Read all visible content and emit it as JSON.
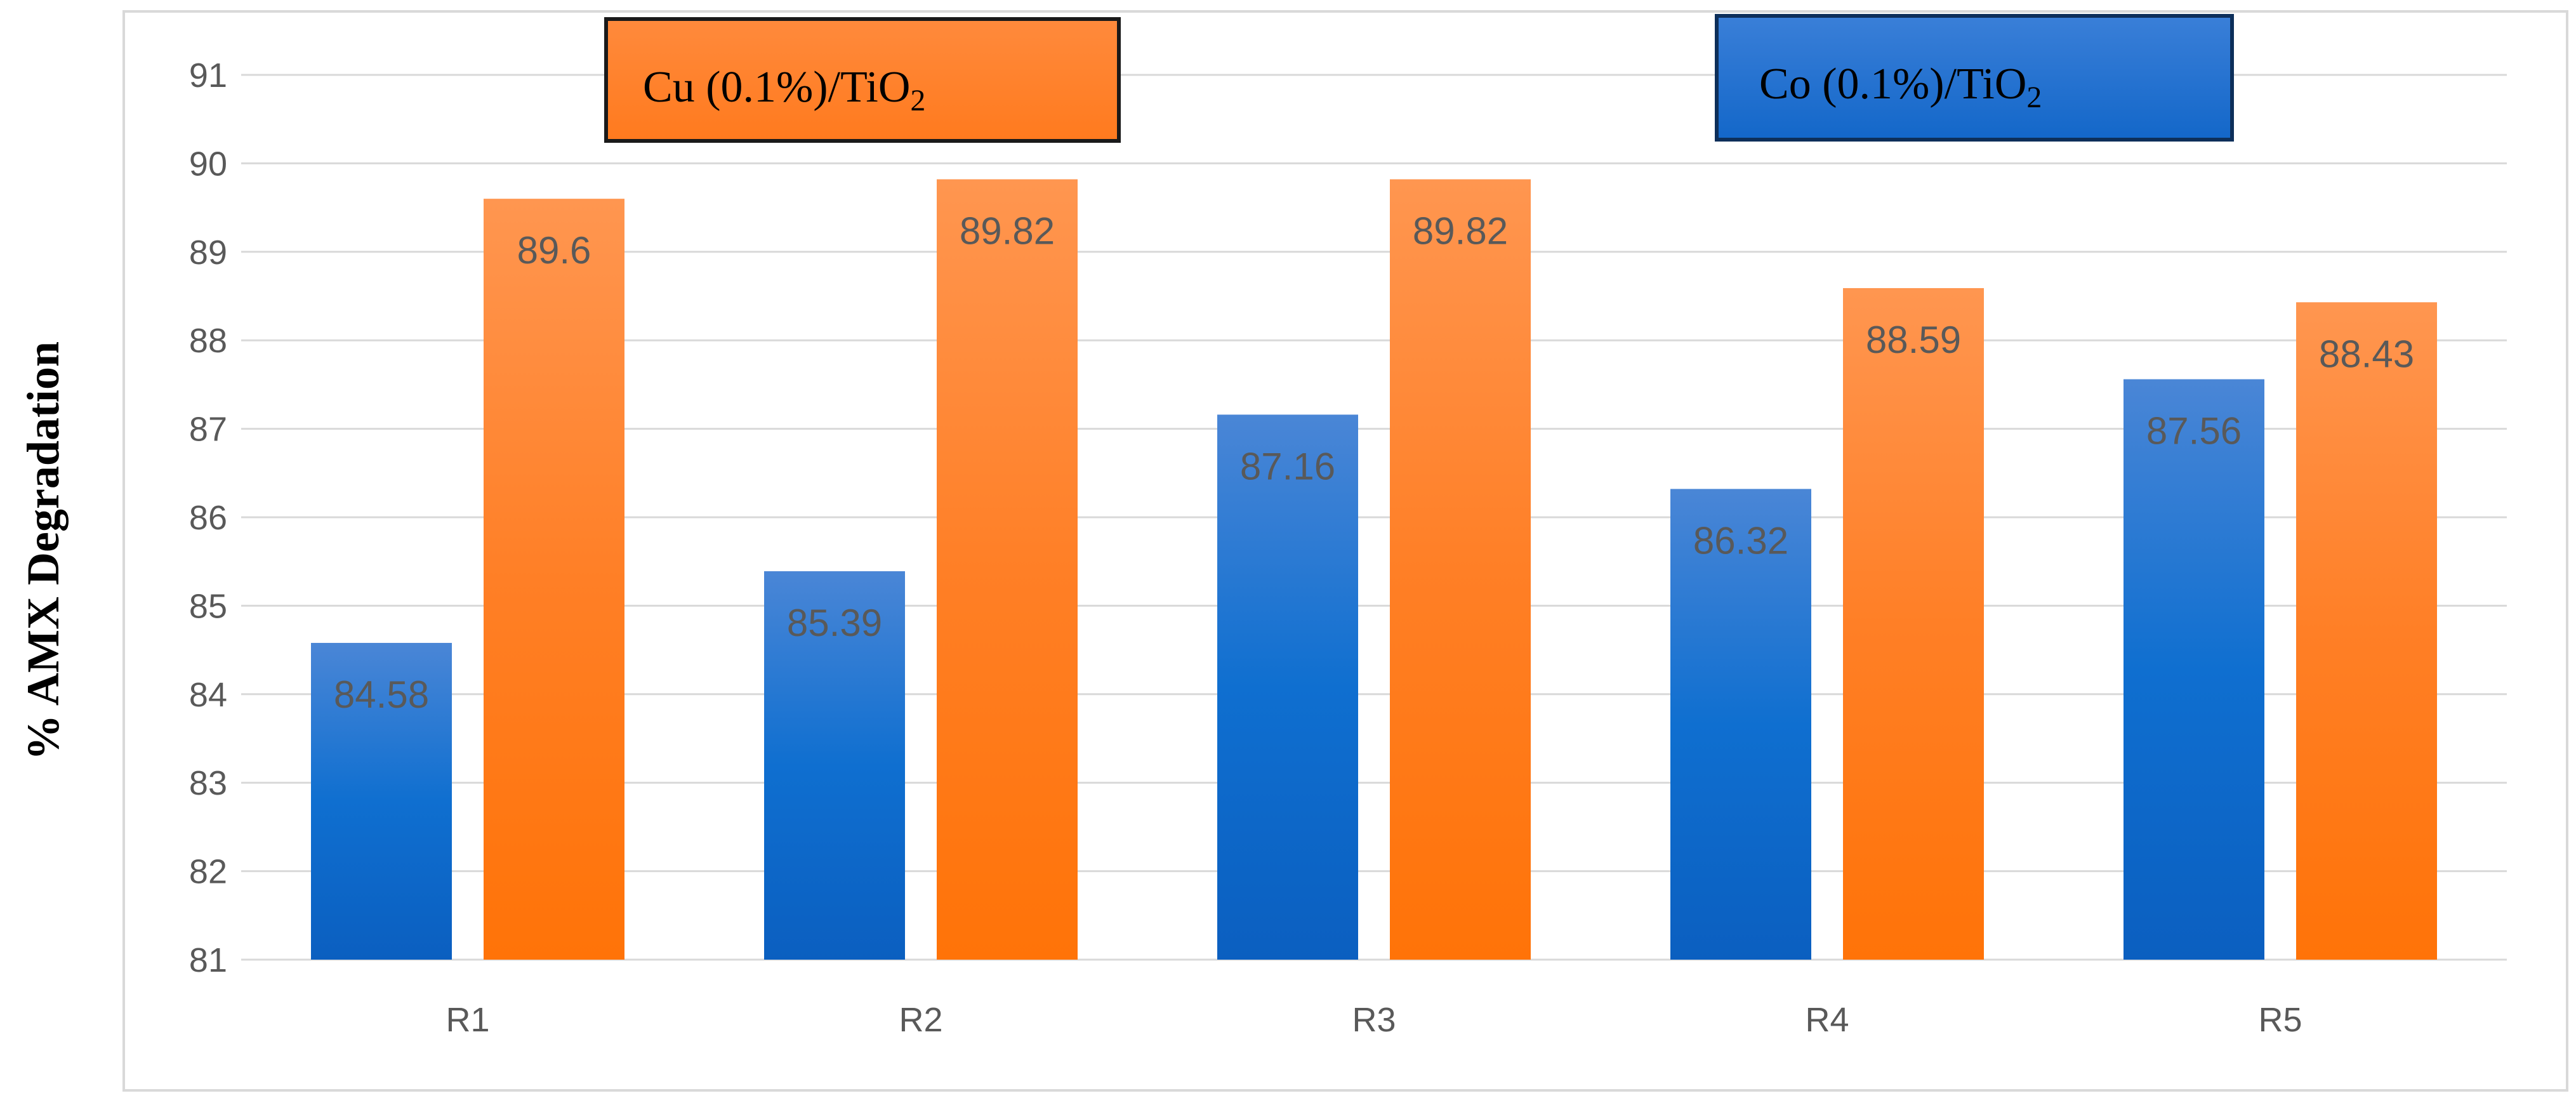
{
  "chart_data": {
    "type": "bar",
    "categories": [
      "R1",
      "R2",
      "R3",
      "R4",
      "R5"
    ],
    "series": [
      {
        "name": "Co (0.1%)/TiO2",
        "values": [
          84.58,
          85.39,
          87.16,
          86.32,
          87.56
        ],
        "value_labels": [
          "84.58",
          "85.39",
          "87.16",
          "86.32",
          "87.56"
        ],
        "color": "#1f6fd1"
      },
      {
        "name": "Cu (0.1%)/TiO2",
        "values": [
          89.6,
          89.82,
          89.82,
          88.59,
          88.43
        ],
        "value_labels": [
          "89.6",
          "89.82",
          "89.82",
          "88.59",
          "88.43"
        ],
        "color": "#ff7f24"
      }
    ],
    "ylabel": "% AMX Degradation",
    "xlabel": "",
    "ylim": [
      81,
      91
    ],
    "yticks": [
      "81",
      "82",
      "83",
      "84",
      "85",
      "86",
      "87",
      "88",
      "89",
      "90",
      "91"
    ],
    "grid": true,
    "legend": [
      {
        "text": "Cu (0.1%)/TiO",
        "sub": "2",
        "color": "#ff7f24",
        "placement": "top-left"
      },
      {
        "text": "Co (0.1%)/TiO",
        "sub": "2",
        "color": "#1f6fd1",
        "placement": "top-right"
      }
    ]
  }
}
